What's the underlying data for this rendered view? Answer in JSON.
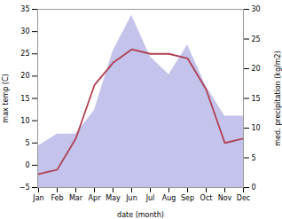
{
  "chart_data": {
    "type": "line",
    "categories": [
      "Jan",
      "Feb",
      "Mar",
      "Apr",
      "May",
      "Jun",
      "Jul",
      "Aug",
      "Sep",
      "Oct",
      "Nov",
      "Dec"
    ],
    "series": [
      {
        "type": "area",
        "axis": "y2",
        "color": "#b8b8e8",
        "values": [
          7,
          9,
          9,
          13,
          23,
          29,
          22,
          19,
          24,
          17,
          12,
          12
        ]
      },
      {
        "type": "line",
        "color": "#b04050",
        "values": [
          -2,
          -1,
          6,
          18,
          23,
          26,
          25,
          25,
          24,
          17,
          5,
          6
        ]
      }
    ],
    "xlabel": "date (month)",
    "ylabel": "max temp (C)",
    "y2label": "med. precipitation (kg/m2)",
    "ylim": [
      -5,
      35
    ],
    "yticks": [
      -5,
      0,
      5,
      10,
      15,
      20,
      25,
      30,
      35
    ],
    "y2lim": [
      0,
      30
    ],
    "y2ticks": [
      0,
      5,
      10,
      15,
      20,
      25,
      30
    ],
    "grid": false
  }
}
